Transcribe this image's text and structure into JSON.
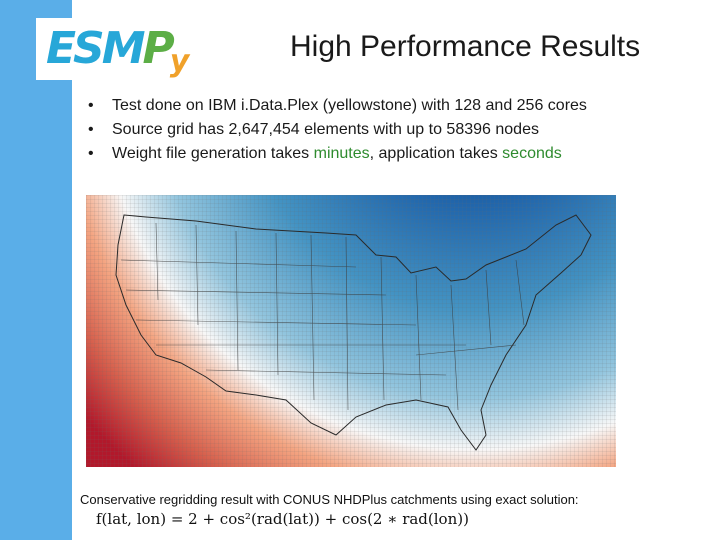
{
  "logo": {
    "alt": "ESMPy",
    "part_esm": "ESM",
    "part_p": "P",
    "part_y": "y"
  },
  "slide": {
    "title": "High Performance Results"
  },
  "bullets": [
    {
      "text": "Test done on IBM i.Data.Plex (yellowstone) with 128 and 256 cores"
    },
    {
      "text": "Source grid has 2,647,454  elements with up to 58396 nodes"
    },
    {
      "pre": "Weight file generation takes ",
      "hl1": "minutes",
      "mid": ", application takes ",
      "hl2": "seconds"
    }
  ],
  "figure": {
    "caption": "Conservative regridding result with CONUS NHDPlus catchments using exact solution:",
    "formula": "f(lat, lon) = 2 + cos²(rad(lat)) + cos(2 ∗ rad(lon))"
  },
  "colors": {
    "sidebar": "#5aaee8",
    "highlight": "#2e8b2e",
    "map_warm": "#b2182b",
    "map_cool": "#2166ac"
  }
}
